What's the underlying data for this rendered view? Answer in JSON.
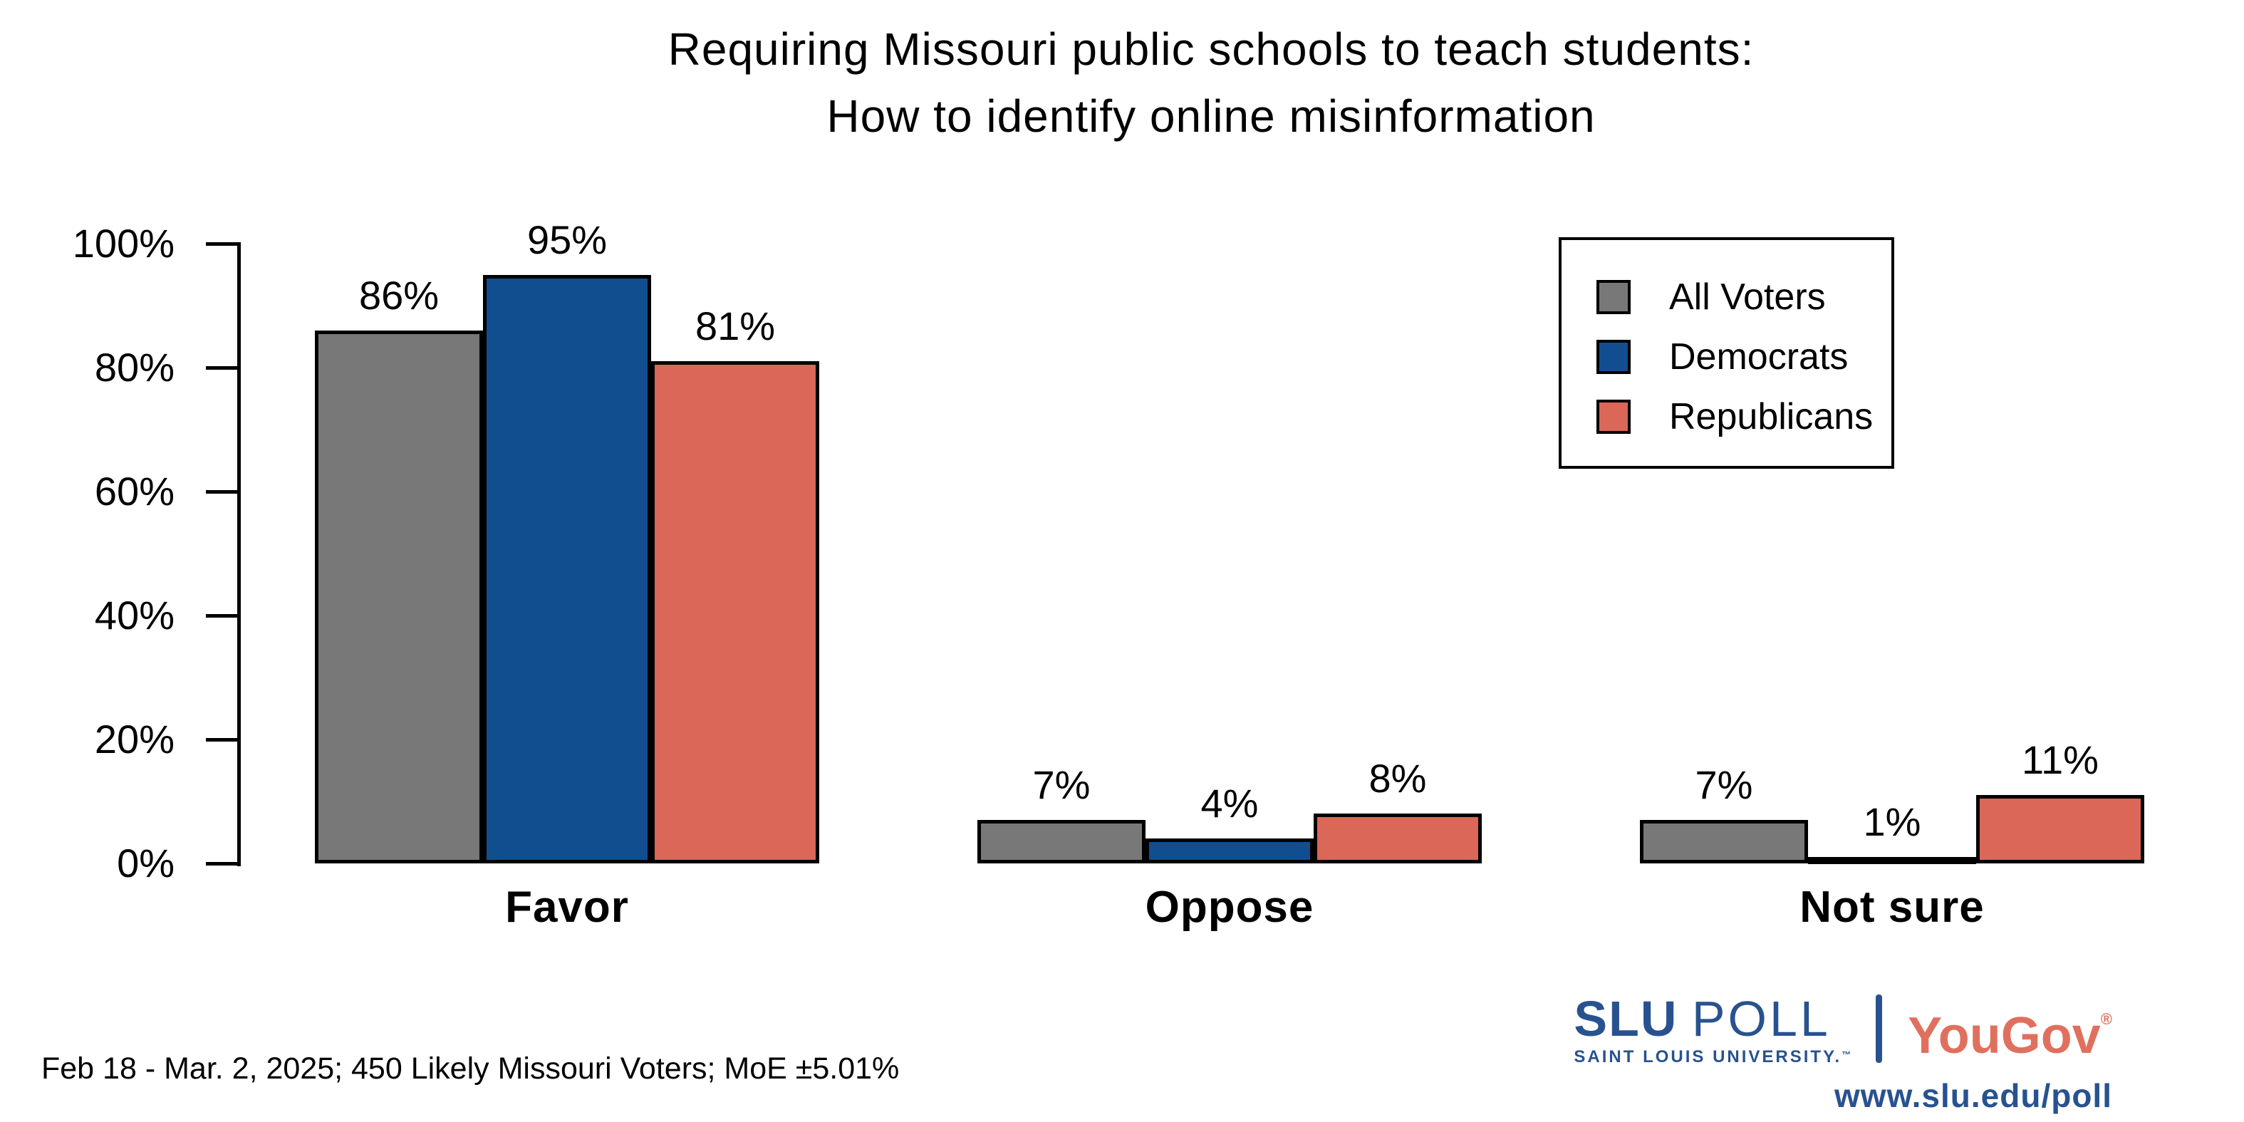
{
  "chart": {
    "title_lines": [
      "Requiring Missouri public schools to teach students:",
      "How to identify online misinformation"
    ]
  },
  "chart_data": {
    "type": "bar",
    "title": "Requiring Missouri public schools to teach students: How to identify online misinformation",
    "categories": [
      "Favor",
      "Oppose",
      "Not sure"
    ],
    "series": [
      {
        "name": "All Voters",
        "color": "#787878",
        "values": [
          86,
          7,
          7
        ]
      },
      {
        "name": "Democrats",
        "color": "#114E8F",
        "values": [
          95,
          4,
          1
        ]
      },
      {
        "name": "Republicans",
        "color": "#DA6757",
        "values": [
          81,
          8,
          11
        ]
      }
    ],
    "value_label_suffix": "%",
    "xlabel": "",
    "ylabel": "",
    "ylim": [
      0,
      100
    ],
    "yticks": [
      0,
      20,
      40,
      60,
      80,
      100
    ],
    "ytick_labels": [
      "0%",
      "20%",
      "40%",
      "60%",
      "80%",
      "100%"
    ],
    "grid": false,
    "legend_position": "upper right",
    "bar_edge_color": "#000000"
  },
  "caption": "Feb 18 - Mar. 2, 2025; 450 Likely Missouri Voters; MoE ±5.01%",
  "branding": {
    "slu_word1": "SLU",
    "slu_word2": "POLL",
    "slu_sub": "SAINT LOUIS UNIVERSITY.",
    "slu_tm": "™",
    "partner": "YouGov",
    "partner_reg": "®",
    "url": "www.slu.edu/poll",
    "navy": "#28528F",
    "coral": "#E0705E"
  }
}
